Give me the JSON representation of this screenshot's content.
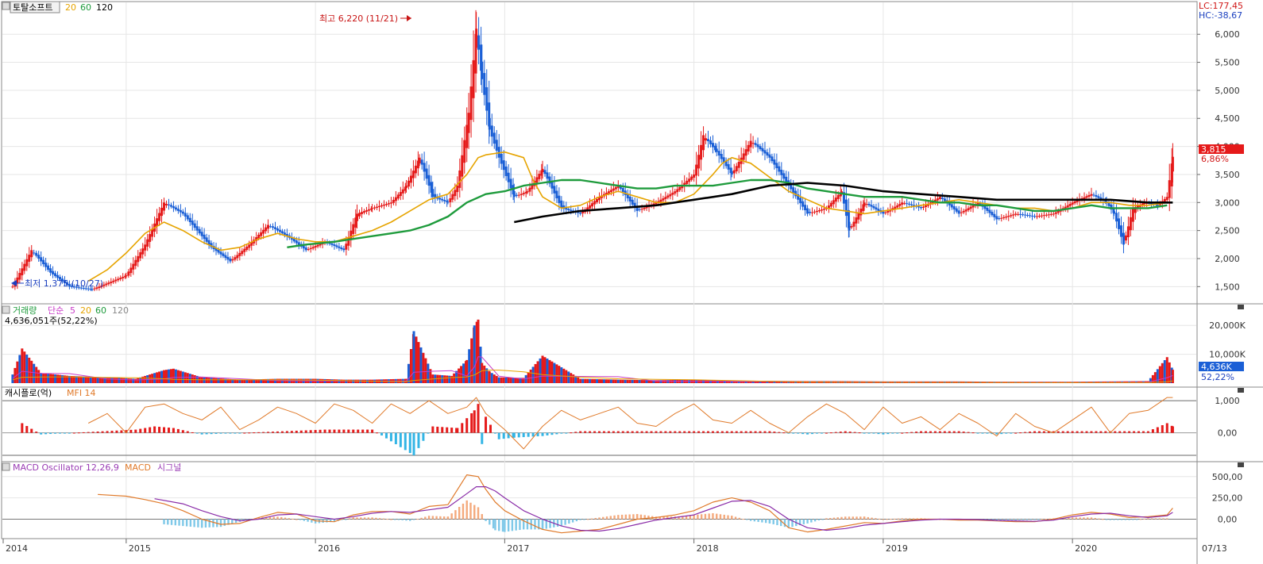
{
  "price_panel": {
    "title": "토탈소프트",
    "ma_labels": [
      "20",
      "60",
      "120"
    ],
    "ma_colors": [
      "#e6a400",
      "#1e9b3c",
      "#000000"
    ],
    "lc_label": "LC:177,45",
    "hc_label": "HC:-38,67",
    "price_tag": "3,815",
    "pct_tag": "6,86%",
    "high_annotation": "최고 6,220 (11/21)",
    "low_annotation": "최저 1,375 (10/27)",
    "y_ticks": [
      "6,000",
      "5,500",
      "5,000",
      "4,500",
      "4,000",
      "3,500",
      "3,000",
      "2,500",
      "2,000",
      "1,500"
    ]
  },
  "volume_panel": {
    "title": "거래량",
    "sub_label": "단순",
    "ma_labels": [
      "5",
      "20",
      "60",
      "120"
    ],
    "ma_colors": [
      "#c83cc8",
      "#e6a400",
      "#1e9b3c",
      "#888888"
    ],
    "info": "4,636,051주(52,22%)",
    "y_ticks": [
      "20,000K",
      "10,000K"
    ],
    "value_tag": "4,636K",
    "pct_tag": "52,22%"
  },
  "mfi_panel": {
    "title": "캐시플로(억)",
    "sub_label": "MFI 14",
    "y_ticks": [
      "1,000",
      "0,00"
    ]
  },
  "macd_panel": {
    "title": "MACD Oscillator 12,26,9",
    "macd_label": "MACD",
    "signal_label": "시그널",
    "y_ticks": [
      "500,00",
      "250,00",
      "0,00"
    ]
  },
  "x_axis": {
    "labels": [
      "2014",
      "2015",
      "2016",
      "2017",
      "2018",
      "2019",
      "2020"
    ],
    "date_label": "07/13"
  },
  "chart_data": {
    "type": "line",
    "title": "토탈소프트",
    "x_unit": "year",
    "xlim": [
      2014.35,
      2020.65
    ],
    "price_ylim": [
      1250,
      6300
    ],
    "price": {
      "x": [
        2014.4,
        2014.5,
        2014.6,
        2014.7,
        2014.82,
        2015.0,
        2015.1,
        2015.2,
        2015.3,
        2015.45,
        2015.55,
        2015.65,
        2015.75,
        2015.85,
        2015.95,
        2016.05,
        2016.15,
        2016.22,
        2016.3,
        2016.4,
        2016.48,
        2016.55,
        2016.62,
        2016.7,
        2016.75,
        2016.81,
        2016.85,
        2016.88,
        2016.92,
        2016.97,
        2017.05,
        2017.12,
        2017.2,
        2017.3,
        2017.4,
        2017.5,
        2017.6,
        2017.7,
        2017.8,
        2017.9,
        2018.0,
        2018.05,
        2018.12,
        2018.2,
        2018.3,
        2018.4,
        2018.5,
        2018.6,
        2018.7,
        2018.78,
        2018.82,
        2018.9,
        2019.0,
        2019.1,
        2019.2,
        2019.3,
        2019.4,
        2019.5,
        2019.6,
        2019.7,
        2019.8,
        2019.9,
        2020.0,
        2020.1,
        2020.18,
        2020.22,
        2020.27,
        2020.32,
        2020.38,
        2020.45,
        2020.5,
        2020.53
      ],
      "y": [
        1500,
        2150,
        1750,
        1500,
        1450,
        1700,
        2250,
        3000,
        2800,
        2200,
        1950,
        2250,
        2600,
        2400,
        2150,
        2300,
        2150,
        2800,
        2900,
        3000,
        3300,
        3800,
        3100,
        3000,
        3300,
        4600,
        6100,
        5200,
        4300,
        3800,
        3100,
        3200,
        3600,
        2900,
        2800,
        3100,
        3300,
        2850,
        3000,
        3200,
        3500,
        4200,
        3900,
        3500,
        4100,
        3800,
        3300,
        2800,
        2900,
        3200,
        2500,
        3000,
        2800,
        3000,
        2900,
        3100,
        2800,
        3000,
        2700,
        2800,
        2750,
        2800,
        3000,
        3150,
        3000,
        2800,
        2250,
        2900,
        3000,
        2950,
        3100,
        3815
      ]
    },
    "ma20": {
      "x": [
        2014.8,
        2014.9,
        2015.0,
        2015.1,
        2015.2,
        2015.3,
        2015.4,
        2015.5,
        2015.6,
        2015.7,
        2015.8,
        2015.9,
        2016.0,
        2016.1,
        2016.2,
        2016.3,
        2016.4,
        2016.5,
        2016.6,
        2016.7,
        2016.8,
        2016.86,
        2016.9,
        2017.0,
        2017.1,
        2017.15,
        2017.2,
        2017.3,
        2017.4,
        2017.5,
        2017.6,
        2017.7,
        2017.8,
        2017.9,
        2018.0,
        2018.1,
        2018.15,
        2018.2,
        2018.3,
        2018.4,
        2018.5,
        2018.6,
        2018.7,
        2018.8,
        2018.9,
        2019.0,
        2019.1,
        2019.2,
        2019.3,
        2019.4,
        2019.5,
        2019.6,
        2019.7,
        2019.8,
        2019.9,
        2020.0,
        2020.1,
        2020.2,
        2020.3,
        2020.4,
        2020.5
      ],
      "y": [
        1600,
        1800,
        2100,
        2450,
        2650,
        2500,
        2300,
        2150,
        2200,
        2350,
        2450,
        2350,
        2300,
        2300,
        2400,
        2500,
        2650,
        2850,
        3050,
        3150,
        3500,
        3800,
        3850,
        3900,
        3800,
        3400,
        3100,
        2900,
        2950,
        3100,
        3200,
        3100,
        3000,
        3000,
        3150,
        3500,
        3700,
        3800,
        3700,
        3450,
        3200,
        3050,
        2900,
        2850,
        2800,
        2850,
        2900,
        2950,
        3000,
        3050,
        3000,
        2950,
        2900,
        2900,
        2850,
        2900,
        3000,
        3000,
        2950,
        2950,
        3000
      ]
    },
    "ma60": {
      "x": [
        2015.85,
        2015.95,
        2016.1,
        2016.2,
        2016.3,
        2016.4,
        2016.5,
        2016.6,
        2016.7,
        2016.8,
        2016.9,
        2017.0,
        2017.1,
        2017.2,
        2017.3,
        2017.4,
        2017.5,
        2017.6,
        2017.7,
        2017.8,
        2017.9,
        2018.0,
        2018.1,
        2018.2,
        2018.3,
        2018.4,
        2018.5,
        2018.6,
        2018.7,
        2018.8,
        2018.9,
        2019.0,
        2019.1,
        2019.2,
        2019.3,
        2019.4,
        2019.5,
        2019.6,
        2019.7,
        2019.8,
        2019.9,
        2020.0,
        2020.1,
        2020.2,
        2020.3,
        2020.4,
        2020.5
      ],
      "y": [
        2200,
        2250,
        2300,
        2350,
        2400,
        2450,
        2500,
        2600,
        2750,
        3000,
        3150,
        3200,
        3300,
        3350,
        3400,
        3400,
        3350,
        3300,
        3250,
        3250,
        3300,
        3300,
        3300,
        3350,
        3400,
        3400,
        3350,
        3250,
        3200,
        3150,
        3100,
        3100,
        3100,
        3050,
        3000,
        3000,
        2950,
        2950,
        2900,
        2850,
        2850,
        2900,
        2950,
        2900,
        2900,
        2900,
        2950
      ]
    },
    "ma120": {
      "x": [
        2017.05,
        2017.2,
        2017.4,
        2017.6,
        2017.8,
        2018.0,
        2018.2,
        2018.4,
        2018.6,
        2018.8,
        2019.0,
        2019.2,
        2019.4,
        2019.6,
        2019.8,
        2020.0,
        2020.2,
        2020.4,
        2020.53
      ],
      "y": [
        2650,
        2750,
        2850,
        2900,
        2950,
        3050,
        3150,
        3300,
        3350,
        3300,
        3200,
        3150,
        3100,
        3050,
        3050,
        3050,
        3050,
        3000,
        3000
      ]
    },
    "volume_ylim": [
      0,
      25000
    ],
    "volume_k": {
      "x": [
        2014.4,
        2014.45,
        2014.55,
        2014.7,
        2014.9,
        2015.05,
        2015.2,
        2015.25,
        2015.4,
        2015.6,
        2015.8,
        2016.0,
        2016.15,
        2016.3,
        2016.48,
        2016.52,
        2016.62,
        2016.72,
        2016.8,
        2016.84,
        2016.86,
        2016.88,
        2016.92,
        2016.97,
        2017.1,
        2017.2,
        2017.4,
        2017.6,
        2017.8,
        2018.0,
        2018.2,
        2018.4,
        2018.6,
        2018.8,
        2019.0,
        2019.2,
        2019.4,
        2019.6,
        2019.8,
        2020.0,
        2020.2,
        2020.4,
        2020.5,
        2020.53
      ],
      "y": [
        3000,
        12000,
        3500,
        2500,
        2000,
        1500,
        4500,
        5000,
        2000,
        1200,
        1500,
        1500,
        1200,
        1200,
        1500,
        18000,
        3000,
        2500,
        8000,
        20000,
        22000,
        7000,
        4000,
        2000,
        1800,
        9500,
        1500,
        1200,
        1000,
        1200,
        800,
        800,
        700,
        700,
        600,
        600,
        600,
        500,
        500,
        500,
        600,
        700,
        9000,
        4636
      ]
    },
    "mfi_ylim": [
      -0.7,
      1.2
    ],
    "mfi": {
      "x": [
        2014.8,
        2014.9,
        2015.0,
        2015.1,
        2015.2,
        2015.3,
        2015.4,
        2015.5,
        2015.6,
        2015.7,
        2015.8,
        2015.9,
        2016.0,
        2016.1,
        2016.2,
        2016.3,
        2016.4,
        2016.5,
        2016.6,
        2016.7,
        2016.8,
        2016.85,
        2016.9,
        2017.0,
        2017.1,
        2017.2,
        2017.3,
        2017.4,
        2017.5,
        2017.6,
        2017.7,
        2017.8,
        2017.9,
        2018.0,
        2018.1,
        2018.2,
        2018.3,
        2018.4,
        2018.5,
        2018.6,
        2018.7,
        2018.8,
        2018.9,
        2019.0,
        2019.1,
        2019.2,
        2019.3,
        2019.4,
        2019.5,
        2019.6,
        2019.7,
        2019.8,
        2019.9,
        2020.0,
        2020.1,
        2020.2,
        2020.3,
        2020.4,
        2020.5,
        2020.53
      ],
      "y": [
        0.3,
        0.6,
        0.0,
        0.8,
        0.9,
        0.6,
        0.4,
        0.8,
        0.1,
        0.4,
        0.8,
        0.6,
        0.3,
        0.9,
        0.7,
        0.3,
        0.9,
        0.6,
        1.0,
        0.6,
        0.8,
        1.1,
        0.6,
        0.1,
        -0.5,
        0.2,
        0.7,
        0.4,
        0.6,
        0.8,
        0.3,
        0.2,
        0.6,
        0.9,
        0.4,
        0.3,
        0.7,
        0.3,
        0.0,
        0.5,
        0.9,
        0.6,
        0.1,
        0.8,
        0.3,
        0.5,
        0.1,
        0.6,
        0.3,
        -0.1,
        0.6,
        0.2,
        0.0,
        0.4,
        0.8,
        0.0,
        0.6,
        0.7,
        1.1,
        1.1
      ]
    },
    "cashflow": {
      "x": [
        2014.45,
        2014.55,
        2015.05,
        2015.15,
        2015.25,
        2015.4,
        2016.05,
        2016.3,
        2016.52,
        2016.62,
        2016.75,
        2016.84,
        2016.86,
        2016.88,
        2016.9,
        2016.97,
        2017.05,
        2017.2,
        2017.4,
        2017.8,
        2018.0,
        2018.2,
        2018.4,
        2018.6,
        2018.8,
        2019.0,
        2019.2,
        2019.4,
        2019.6,
        2019.8,
        2020.0,
        2020.2,
        2020.4,
        2020.5,
        2020.53
      ],
      "y": [
        0.3,
        -0.05,
        0.1,
        0.2,
        0.15,
        -0.05,
        0.1,
        0.1,
        -0.7,
        0.2,
        0.15,
        0.7,
        0.9,
        -0.35,
        0.5,
        -0.2,
        -0.15,
        -0.1,
        0.05,
        0.05,
        0.05,
        0.05,
        0.05,
        -0.05,
        0.05,
        -0.05,
        0.05,
        0.05,
        -0.05,
        0.05,
        0.05,
        0.05,
        0.05,
        0.3,
        0.2
      ]
    },
    "macd_ylim": [
      -200,
      600
    ],
    "macd": {
      "x": [
        2014.85,
        2015.0,
        2015.1,
        2015.2,
        2015.3,
        2015.4,
        2015.5,
        2015.6,
        2015.7,
        2015.8,
        2015.9,
        2016.0,
        2016.1,
        2016.2,
        2016.3,
        2016.4,
        2016.5,
        2016.6,
        2016.7,
        2016.8,
        2016.86,
        2016.9,
        2016.95,
        2017.0,
        2017.1,
        2017.2,
        2017.3,
        2017.4,
        2017.5,
        2017.6,
        2017.7,
        2017.8,
        2017.9,
        2018.0,
        2018.1,
        2018.2,
        2018.3,
        2018.4,
        2018.5,
        2018.6,
        2018.7,
        2018.8,
        2018.9,
        2019.0,
        2019.1,
        2019.2,
        2019.3,
        2019.4,
        2019.5,
        2019.6,
        2019.7,
        2019.8,
        2019.9,
        2020.0,
        2020.1,
        2020.2,
        2020.3,
        2020.4,
        2020.5,
        2020.53
      ],
      "y": [
        290,
        270,
        230,
        180,
        100,
        0,
        -60,
        -50,
        20,
        80,
        60,
        -20,
        -30,
        50,
        90,
        90,
        60,
        150,
        170,
        520,
        500,
        350,
        200,
        100,
        -20,
        -120,
        -160,
        -140,
        -120,
        -60,
        0,
        20,
        50,
        100,
        200,
        250,
        200,
        100,
        -100,
        -150,
        -120,
        -80,
        -40,
        -50,
        -20,
        0,
        0,
        -10,
        -10,
        -20,
        -30,
        -30,
        0,
        50,
        80,
        60,
        20,
        30,
        50,
        130
      ]
    },
    "signal": {
      "x": [
        2015.15,
        2015.3,
        2015.4,
        2015.5,
        2015.6,
        2015.7,
        2015.8,
        2015.9,
        2016.0,
        2016.1,
        2016.2,
        2016.3,
        2016.4,
        2016.5,
        2016.6,
        2016.7,
        2016.8,
        2016.85,
        2016.9,
        2016.95,
        2017.0,
        2017.1,
        2017.2,
        2017.3,
        2017.4,
        2017.5,
        2017.6,
        2017.7,
        2017.8,
        2017.9,
        2018.0,
        2018.1,
        2018.2,
        2018.3,
        2018.4,
        2018.5,
        2018.6,
        2018.7,
        2018.8,
        2018.9,
        2019.0,
        2019.1,
        2019.2,
        2019.3,
        2019.4,
        2019.5,
        2019.6,
        2019.7,
        2019.8,
        2019.9,
        2020.0,
        2020.1,
        2020.2,
        2020.3,
        2020.4,
        2020.5,
        2020.53
      ],
      "y": [
        240,
        180,
        100,
        30,
        -20,
        0,
        50,
        60,
        30,
        0,
        30,
        70,
        90,
        80,
        110,
        140,
        300,
        380,
        380,
        330,
        250,
        100,
        0,
        -80,
        -130,
        -140,
        -110,
        -60,
        -10,
        20,
        50,
        130,
        210,
        220,
        150,
        0,
        -100,
        -130,
        -110,
        -70,
        -50,
        -30,
        -10,
        0,
        0,
        -5,
        -15,
        -20,
        -25,
        -10,
        30,
        60,
        70,
        40,
        20,
        40,
        80
      ]
    },
    "oscillator": {
      "x": [
        2015.2,
        2015.3,
        2015.4,
        2015.5,
        2015.6,
        2015.7,
        2015.8,
        2015.9,
        2016.0,
        2016.1,
        2016.2,
        2016.3,
        2016.4,
        2016.5,
        2016.6,
        2016.7,
        2016.8,
        2016.86,
        2016.9,
        2016.95,
        2017.0,
        2017.1,
        2017.2,
        2017.3,
        2017.4,
        2017.5,
        2017.6,
        2017.7,
        2017.8,
        2017.9,
        2018.0,
        2018.1,
        2018.2,
        2018.3,
        2018.4,
        2018.5,
        2018.6,
        2018.7,
        2018.8,
        2018.9,
        2019.0,
        2019.1,
        2019.2,
        2019.3,
        2019.4,
        2019.5,
        2019.6,
        2019.7,
        2019.8,
        2019.9,
        2020.0,
        2020.1,
        2020.2,
        2020.3,
        2020.4,
        2020.5
      ],
      "y": [
        -60,
        -80,
        -100,
        -90,
        -30,
        20,
        30,
        0,
        -50,
        -30,
        20,
        20,
        0,
        -20,
        40,
        30,
        220,
        140,
        -20,
        -130,
        -150,
        -120,
        -120,
        -80,
        -10,
        20,
        50,
        60,
        30,
        30,
        50,
        70,
        40,
        -20,
        -50,
        -100,
        -50,
        10,
        30,
        30,
        0,
        10,
        10,
        0,
        -10,
        -5,
        -5,
        -10,
        -5,
        10,
        20,
        20,
        -10,
        -10,
        10,
        10
      ]
    }
  }
}
